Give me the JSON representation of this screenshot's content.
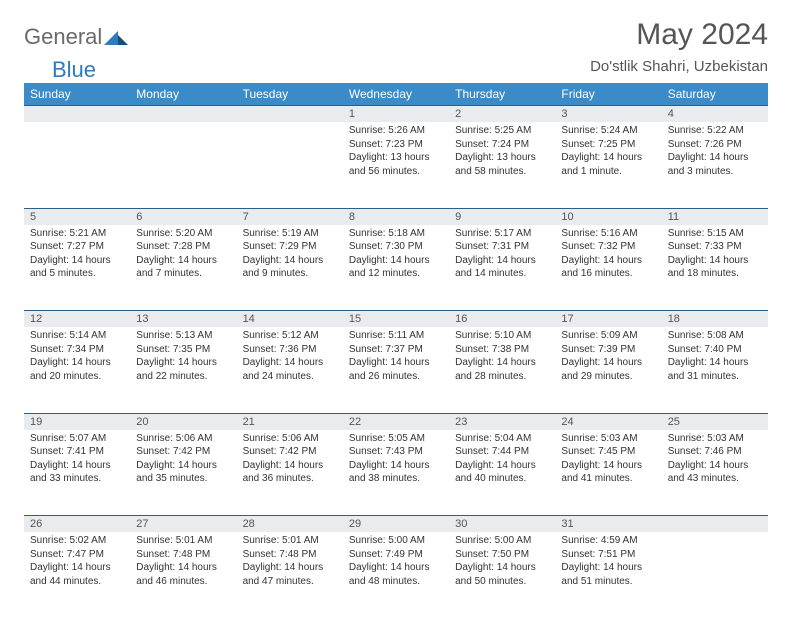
{
  "logo": {
    "general": "General",
    "blue": "Blue"
  },
  "title": "May 2024",
  "location": "Do'stlik Shahri, Uzbekistan",
  "day_headers": [
    "Sunday",
    "Monday",
    "Tuesday",
    "Wednesday",
    "Thursday",
    "Friday",
    "Saturday"
  ],
  "colors": {
    "header_bg": "#3b8bc8",
    "header_text": "#ffffff",
    "daynum_bg": "#e9ecef",
    "border": "#2d5e8a",
    "logo_gray": "#6a6a6a",
    "logo_blue": "#2f7bbf"
  },
  "weeks": [
    [
      null,
      null,
      null,
      {
        "n": "1",
        "sr": "Sunrise: 5:26 AM",
        "ss": "Sunset: 7:23 PM",
        "dl": "Daylight: 13 hours and 56 minutes."
      },
      {
        "n": "2",
        "sr": "Sunrise: 5:25 AM",
        "ss": "Sunset: 7:24 PM",
        "dl": "Daylight: 13 hours and 58 minutes."
      },
      {
        "n": "3",
        "sr": "Sunrise: 5:24 AM",
        "ss": "Sunset: 7:25 PM",
        "dl": "Daylight: 14 hours and 1 minute."
      },
      {
        "n": "4",
        "sr": "Sunrise: 5:22 AM",
        "ss": "Sunset: 7:26 PM",
        "dl": "Daylight: 14 hours and 3 minutes."
      }
    ],
    [
      {
        "n": "5",
        "sr": "Sunrise: 5:21 AM",
        "ss": "Sunset: 7:27 PM",
        "dl": "Daylight: 14 hours and 5 minutes."
      },
      {
        "n": "6",
        "sr": "Sunrise: 5:20 AM",
        "ss": "Sunset: 7:28 PM",
        "dl": "Daylight: 14 hours and 7 minutes."
      },
      {
        "n": "7",
        "sr": "Sunrise: 5:19 AM",
        "ss": "Sunset: 7:29 PM",
        "dl": "Daylight: 14 hours and 9 minutes."
      },
      {
        "n": "8",
        "sr": "Sunrise: 5:18 AM",
        "ss": "Sunset: 7:30 PM",
        "dl": "Daylight: 14 hours and 12 minutes."
      },
      {
        "n": "9",
        "sr": "Sunrise: 5:17 AM",
        "ss": "Sunset: 7:31 PM",
        "dl": "Daylight: 14 hours and 14 minutes."
      },
      {
        "n": "10",
        "sr": "Sunrise: 5:16 AM",
        "ss": "Sunset: 7:32 PM",
        "dl": "Daylight: 14 hours and 16 minutes."
      },
      {
        "n": "11",
        "sr": "Sunrise: 5:15 AM",
        "ss": "Sunset: 7:33 PM",
        "dl": "Daylight: 14 hours and 18 minutes."
      }
    ],
    [
      {
        "n": "12",
        "sr": "Sunrise: 5:14 AM",
        "ss": "Sunset: 7:34 PM",
        "dl": "Daylight: 14 hours and 20 minutes."
      },
      {
        "n": "13",
        "sr": "Sunrise: 5:13 AM",
        "ss": "Sunset: 7:35 PM",
        "dl": "Daylight: 14 hours and 22 minutes."
      },
      {
        "n": "14",
        "sr": "Sunrise: 5:12 AM",
        "ss": "Sunset: 7:36 PM",
        "dl": "Daylight: 14 hours and 24 minutes."
      },
      {
        "n": "15",
        "sr": "Sunrise: 5:11 AM",
        "ss": "Sunset: 7:37 PM",
        "dl": "Daylight: 14 hours and 26 minutes."
      },
      {
        "n": "16",
        "sr": "Sunrise: 5:10 AM",
        "ss": "Sunset: 7:38 PM",
        "dl": "Daylight: 14 hours and 28 minutes."
      },
      {
        "n": "17",
        "sr": "Sunrise: 5:09 AM",
        "ss": "Sunset: 7:39 PM",
        "dl": "Daylight: 14 hours and 29 minutes."
      },
      {
        "n": "18",
        "sr": "Sunrise: 5:08 AM",
        "ss": "Sunset: 7:40 PM",
        "dl": "Daylight: 14 hours and 31 minutes."
      }
    ],
    [
      {
        "n": "19",
        "sr": "Sunrise: 5:07 AM",
        "ss": "Sunset: 7:41 PM",
        "dl": "Daylight: 14 hours and 33 minutes."
      },
      {
        "n": "20",
        "sr": "Sunrise: 5:06 AM",
        "ss": "Sunset: 7:42 PM",
        "dl": "Daylight: 14 hours and 35 minutes."
      },
      {
        "n": "21",
        "sr": "Sunrise: 5:06 AM",
        "ss": "Sunset: 7:42 PM",
        "dl": "Daylight: 14 hours and 36 minutes."
      },
      {
        "n": "22",
        "sr": "Sunrise: 5:05 AM",
        "ss": "Sunset: 7:43 PM",
        "dl": "Daylight: 14 hours and 38 minutes."
      },
      {
        "n": "23",
        "sr": "Sunrise: 5:04 AM",
        "ss": "Sunset: 7:44 PM",
        "dl": "Daylight: 14 hours and 40 minutes."
      },
      {
        "n": "24",
        "sr": "Sunrise: 5:03 AM",
        "ss": "Sunset: 7:45 PM",
        "dl": "Daylight: 14 hours and 41 minutes."
      },
      {
        "n": "25",
        "sr": "Sunrise: 5:03 AM",
        "ss": "Sunset: 7:46 PM",
        "dl": "Daylight: 14 hours and 43 minutes."
      }
    ],
    [
      {
        "n": "26",
        "sr": "Sunrise: 5:02 AM",
        "ss": "Sunset: 7:47 PM",
        "dl": "Daylight: 14 hours and 44 minutes."
      },
      {
        "n": "27",
        "sr": "Sunrise: 5:01 AM",
        "ss": "Sunset: 7:48 PM",
        "dl": "Daylight: 14 hours and 46 minutes."
      },
      {
        "n": "28",
        "sr": "Sunrise: 5:01 AM",
        "ss": "Sunset: 7:48 PM",
        "dl": "Daylight: 14 hours and 47 minutes."
      },
      {
        "n": "29",
        "sr": "Sunrise: 5:00 AM",
        "ss": "Sunset: 7:49 PM",
        "dl": "Daylight: 14 hours and 48 minutes."
      },
      {
        "n": "30",
        "sr": "Sunrise: 5:00 AM",
        "ss": "Sunset: 7:50 PM",
        "dl": "Daylight: 14 hours and 50 minutes."
      },
      {
        "n": "31",
        "sr": "Sunrise: 4:59 AM",
        "ss": "Sunset: 7:51 PM",
        "dl": "Daylight: 14 hours and 51 minutes."
      },
      null
    ]
  ]
}
